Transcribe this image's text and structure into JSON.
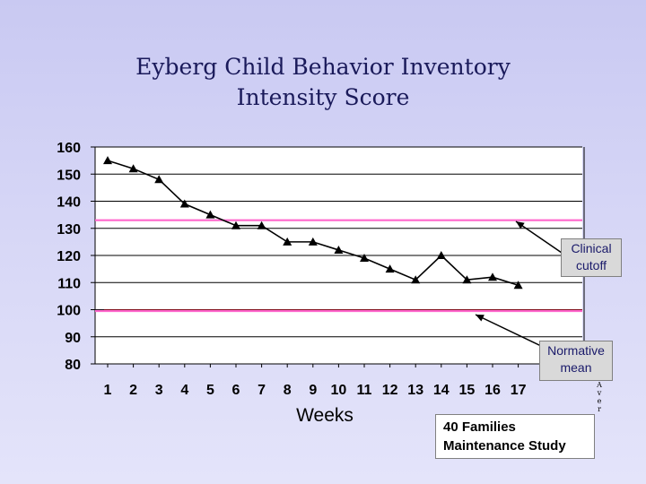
{
  "chart_data": {
    "type": "line",
    "title": [
      "Eyberg Child Behavior Inventory",
      "Intensity Score"
    ],
    "xlabel": "Weeks",
    "ylabel": "",
    "categories": [
      "1",
      "2",
      "3",
      "4",
      "5",
      "6",
      "7",
      "8",
      "9",
      "10",
      "11",
      "12",
      "13",
      "14",
      "15",
      "16",
      "17"
    ],
    "series": [
      {
        "name": "Intensity Score",
        "values": [
          155,
          152,
          148,
          139,
          135,
          131,
          131,
          125,
          125,
          122,
          119,
          115,
          111,
          120,
          111,
          112,
          109
        ]
      }
    ],
    "ylim": [
      80,
      160
    ],
    "yticks": [
      160,
      150,
      140,
      130,
      120,
      110,
      100,
      90,
      80
    ],
    "grid": true,
    "reference_lines": [
      {
        "name": "Clinical cutoff",
        "value": 133,
        "color": "#ff66cc"
      },
      {
        "name": "Normative mean",
        "value": 99.5,
        "color": "#ff66cc"
      }
    ],
    "annotations": [
      {
        "text": "Clinical cutoff",
        "points_to": "Clinical cutoff"
      },
      {
        "text": "Normative mean",
        "points_to": "Normative mean"
      }
    ],
    "footnote": [
      "40 Families",
      "Maintenance Study"
    ],
    "side_label": [
      "A",
      "v",
      "e",
      "r"
    ]
  },
  "colors": {
    "series": "#000000",
    "reference": "#ff66cc",
    "dark_line": "#800000",
    "grid": "#000000",
    "plot_bg": "#ffffff"
  }
}
